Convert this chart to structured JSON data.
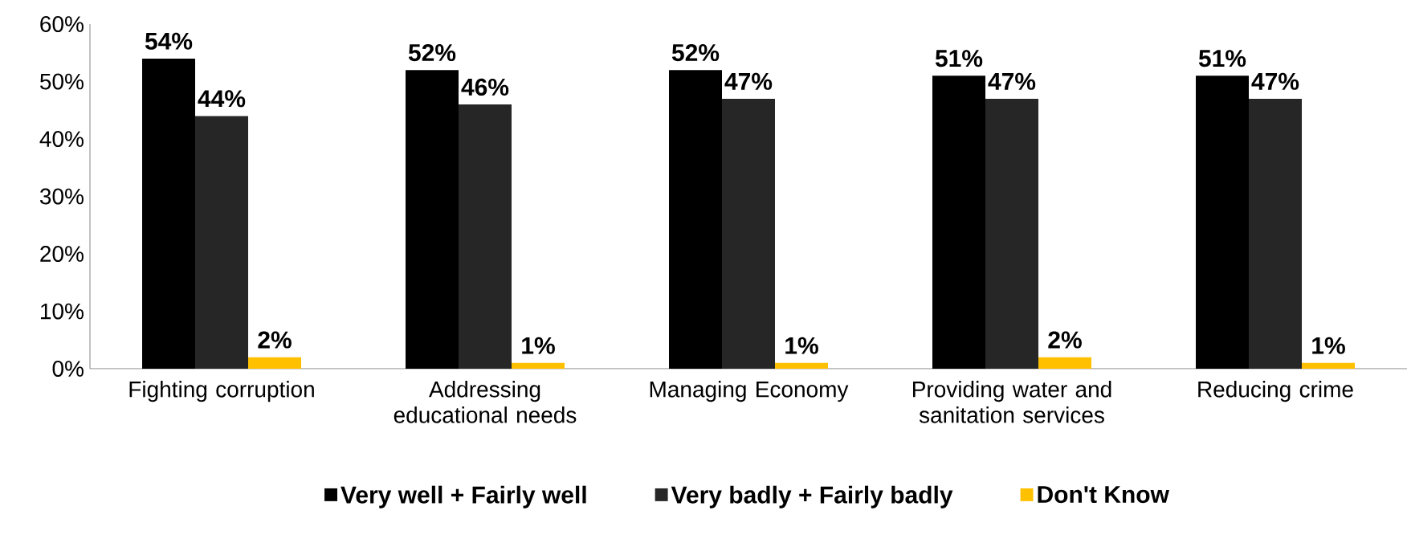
{
  "chart_data": {
    "type": "bar",
    "categories": [
      "Fighting corruption",
      "Addressing educational needs",
      "Managing Economy",
      "Providing water and sanitation services",
      "Reducing crime"
    ],
    "series": [
      {
        "name": "Very well + Fairly well",
        "color": "#000000",
        "values": [
          54,
          52,
          52,
          51,
          51
        ],
        "value_labels": [
          "54%",
          "52%",
          "52%",
          "51%",
          "51%"
        ]
      },
      {
        "name": "Very badly + Fairly badly",
        "color": "#262626",
        "values": [
          44,
          46,
          47,
          47,
          47
        ],
        "value_labels": [
          "44%",
          "46%",
          "47%",
          "47%",
          "47%"
        ]
      },
      {
        "name": "Don't Know",
        "color": "#ffc000",
        "values": [
          2,
          1,
          1,
          2,
          1
        ],
        "value_labels": [
          "2%",
          "1%",
          "1%",
          "2%",
          "1%"
        ]
      }
    ],
    "ylim": [
      0,
      60
    ],
    "yticks": [
      {
        "value": 0,
        "label": "0%"
      },
      {
        "value": 10,
        "label": "10%"
      },
      {
        "value": 20,
        "label": "20%"
      },
      {
        "value": 30,
        "label": "30%"
      },
      {
        "value": 40,
        "label": "40%"
      },
      {
        "value": 50,
        "label": "50%"
      },
      {
        "value": 60,
        "label": "60%"
      }
    ],
    "legend": "bottom"
  }
}
